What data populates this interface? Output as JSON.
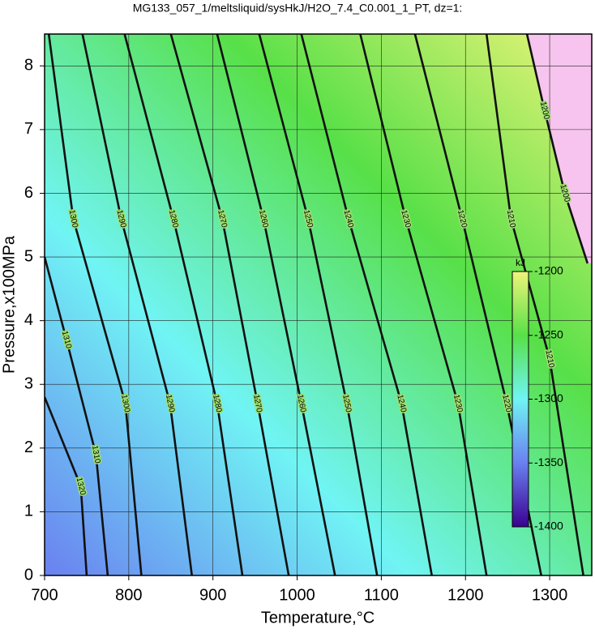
{
  "chart_data": {
    "type": "contour",
    "title": "MG133_057_1/meltsliquid/sysHkJ/H2O_7.4_C0.001_1_PT, dz=1:",
    "x_label": "Temperature,°C",
    "y_label": "Pressure,x100MPa",
    "xlim": [
      700,
      1350
    ],
    "ylim": [
      0,
      8.5
    ],
    "xticks": [
      700,
      800,
      900,
      1000,
      1100,
      1200,
      1300
    ],
    "yticks": [
      0,
      1,
      2,
      3,
      4,
      5,
      6,
      7,
      8
    ],
    "grid": true,
    "line_color": "#111111",
    "overflow_color": "#f6c4ee",
    "series": [
      {
        "name": "1320",
        "x": [
          700,
          743,
          750
        ],
        "y": [
          2.8,
          1.4,
          0
        ]
      },
      {
        "name": "1310",
        "x": [
          700,
          726,
          761,
          775
        ],
        "y": [
          5.0,
          3.7,
          1.9,
          0
        ]
      },
      {
        "name": "1300",
        "x": [
          705,
          734,
          796,
          815
        ],
        "y": [
          8.5,
          5.6,
          2.7,
          0
        ]
      },
      {
        "name": "1290",
        "x": [
          745,
          791,
          849,
          875
        ],
        "y": [
          8.5,
          5.6,
          2.7,
          0
        ]
      },
      {
        "name": "1280",
        "x": [
          795,
          853,
          905,
          935
        ],
        "y": [
          8.5,
          5.6,
          2.7,
          0
        ]
      },
      {
        "name": "1270",
        "x": [
          850,
          911,
          953,
          990
        ],
        "y": [
          8.5,
          5.6,
          2.7,
          0
        ]
      },
      {
        "name": "1260",
        "x": [
          905,
          960,
          1005,
          1045
        ],
        "y": [
          8.5,
          5.6,
          2.7,
          0
        ]
      },
      {
        "name": "1250",
        "x": [
          955,
          1013,
          1059,
          1095
        ],
        "y": [
          8.5,
          5.6,
          2.7,
          0
        ]
      },
      {
        "name": "1240",
        "x": [
          1005,
          1061,
          1124,
          1160
        ],
        "y": [
          8.5,
          5.6,
          2.7,
          0
        ]
      },
      {
        "name": "1230",
        "x": [
          1075,
          1129,
          1191,
          1225
        ],
        "y": [
          8.5,
          5.6,
          2.7,
          0
        ]
      },
      {
        "name": "1220",
        "x": [
          1140,
          1196,
          1249,
          1290
        ],
        "y": [
          8.5,
          5.6,
          2.7,
          0
        ]
      },
      {
        "name": "1210",
        "x": [
          1225,
          1254,
          1300,
          1340
        ],
        "y": [
          8.5,
          5.6,
          3.4,
          0
        ]
      },
      {
        "name": "1200",
        "x": [
          1273,
          1294,
          1318,
          1345
        ],
        "y": [
          8.5,
          7.3,
          6.0,
          4.9
        ]
      }
    ],
    "colorbar": {
      "label": "kJ",
      "lim": [
        -1400,
        -1200
      ],
      "ticks": [
        -1200,
        -1250,
        -1300,
        -1350,
        -1400
      ],
      "colors": [
        "#3a0090",
        "#6a80f0",
        "#70f4f4",
        "#58e048",
        "#eef47a"
      ]
    }
  }
}
